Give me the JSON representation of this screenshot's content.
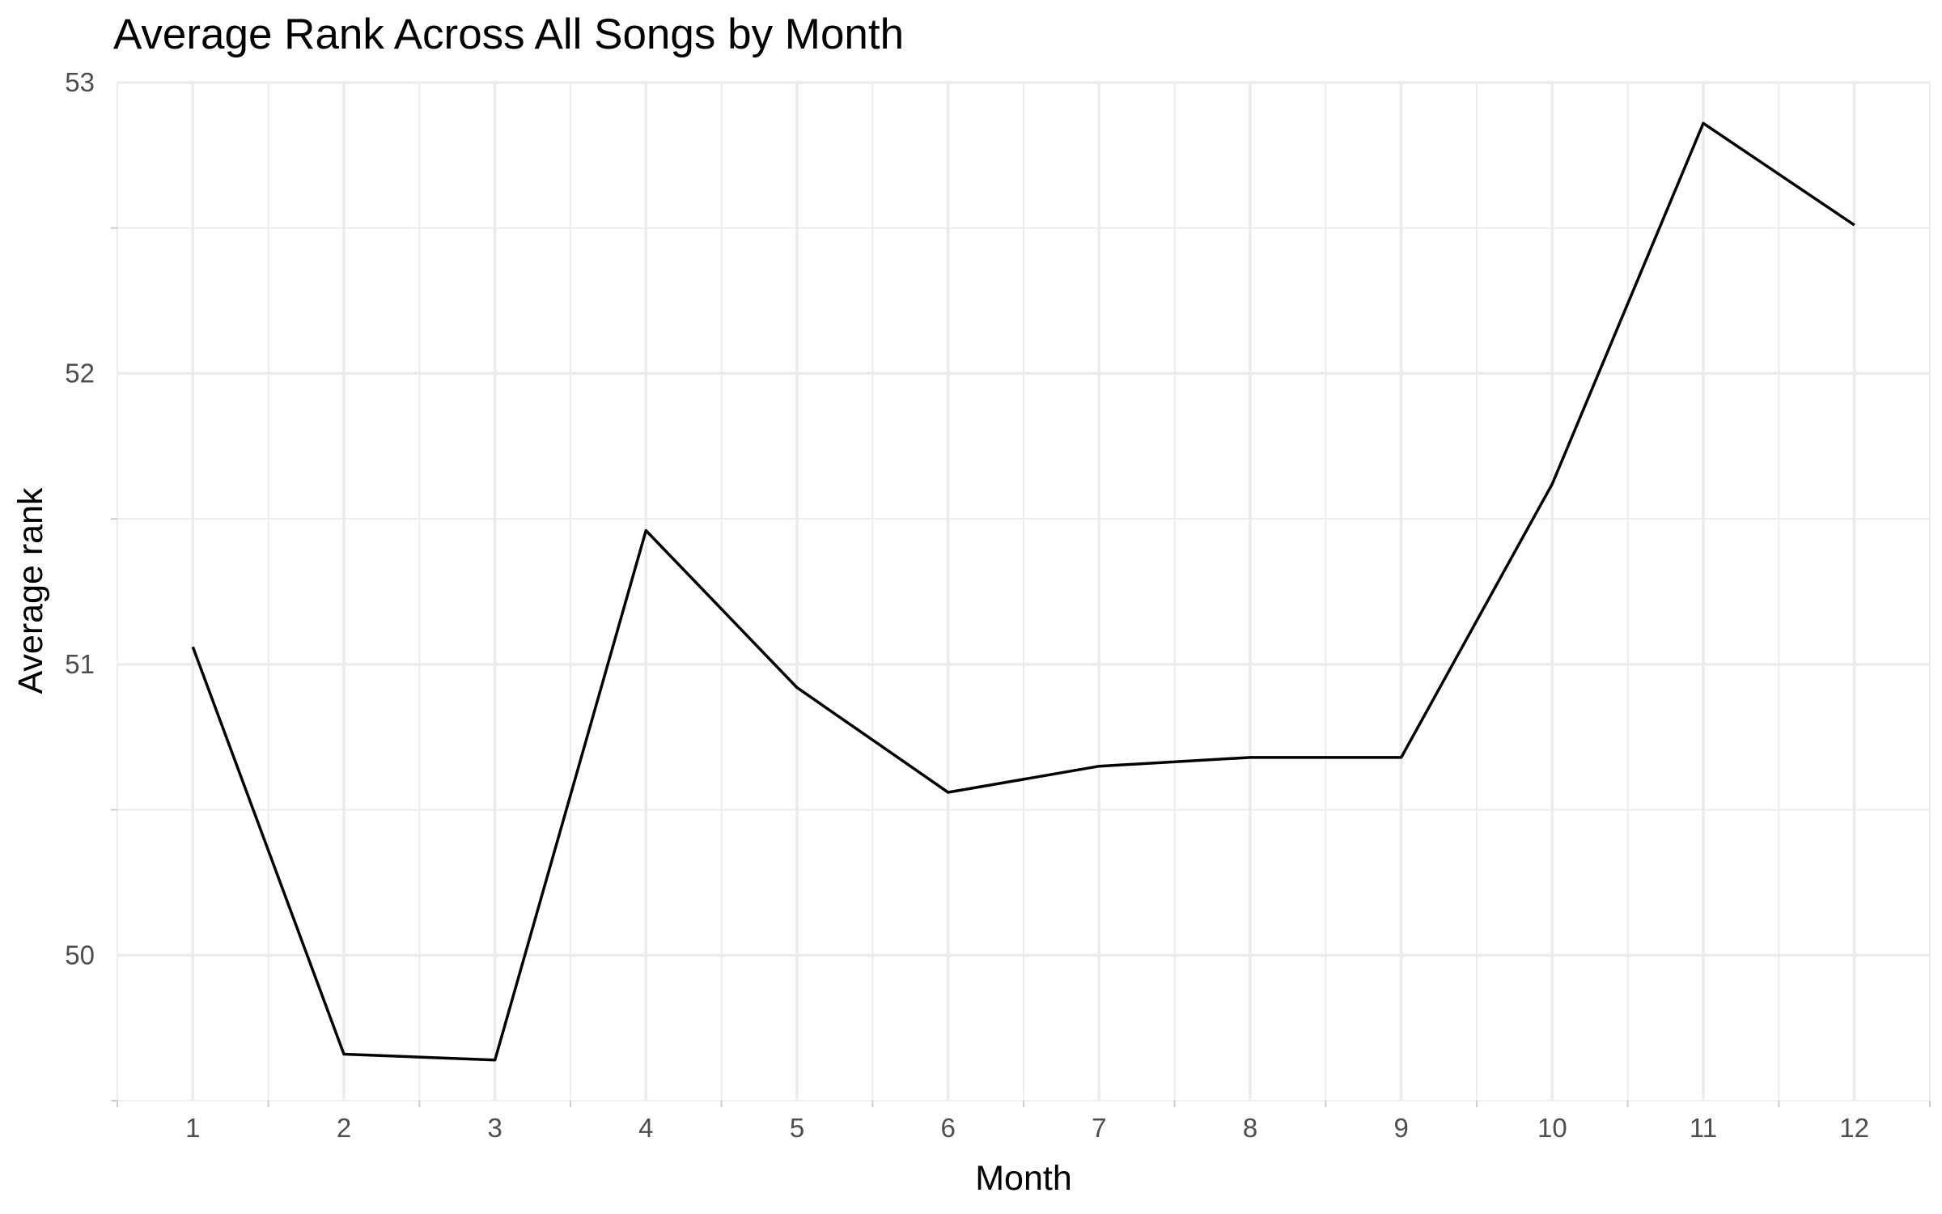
{
  "chart_data": {
    "type": "line",
    "title": "Average Rank Across All Songs by Month",
    "xlabel": "Month",
    "ylabel": "Average rank",
    "x": [
      1,
      2,
      3,
      4,
      5,
      6,
      7,
      8,
      9,
      10,
      11,
      12
    ],
    "xticks": [
      "1",
      "2",
      "3",
      "4",
      "5",
      "6",
      "7",
      "8",
      "9",
      "10",
      "11",
      "12"
    ],
    "xlim": [
      0.5,
      12.5
    ],
    "ylim": [
      49.5,
      53.0
    ],
    "yticks": [
      "50",
      "51",
      "52",
      "53"
    ],
    "grid": true,
    "legend": "none",
    "series": [
      {
        "values": [
          51.06,
          49.66,
          49.64,
          51.46,
          50.92,
          50.56,
          50.65,
          50.68,
          50.68,
          51.62,
          52.86,
          52.51
        ],
        "color": "#000000"
      }
    ]
  }
}
